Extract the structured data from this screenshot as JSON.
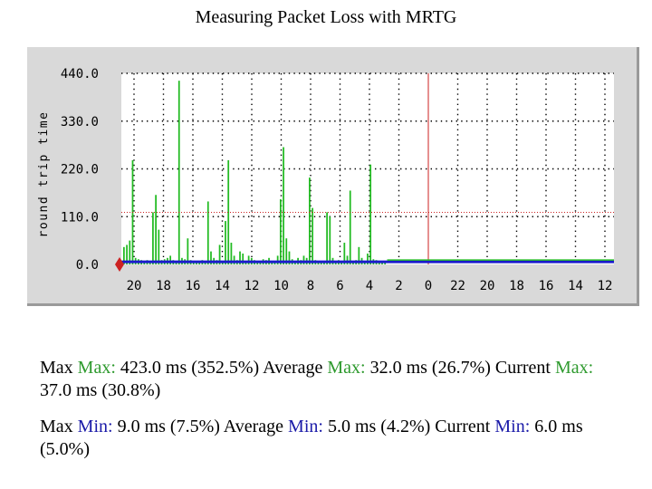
{
  "title": "Measuring Packet Loss with MRTG",
  "colors": {
    "panel_bg": "#d9d9d9",
    "plot_bg": "#ffffff",
    "max_series": "#22bb22",
    "min_series": "#1a1acc",
    "threshold_line": "#cc2222",
    "now_line": "#cc2222",
    "grid": "#000000"
  },
  "chart_data": {
    "type": "bar",
    "ylabel": "round trip time",
    "ylim": [
      0,
      440
    ],
    "y_ticks": [
      "0.0",
      "110.0",
      "220.0",
      "330.0",
      "440.0"
    ],
    "x_ticks": [
      "20",
      "18",
      "16",
      "14",
      "12",
      "10",
      "8",
      "6",
      "4",
      "2",
      "0",
      "22",
      "20",
      "18",
      "16",
      "14",
      "12"
    ],
    "x_axis": "hours before now, newest at the 0 mark; right of 0 shows no recent data",
    "grid": true,
    "threshold_value": 120,
    "series": [
      {
        "name": "Max",
        "values": [
          40,
          45,
          55,
          240,
          15,
          12,
          10,
          8,
          10,
          6,
          120,
          160,
          80,
          10,
          12,
          15,
          20,
          10,
          8,
          423,
          15,
          12,
          60,
          10,
          8,
          6,
          5,
          10,
          8,
          145,
          30,
          15,
          10,
          45,
          8,
          100,
          240,
          50,
          20,
          10,
          30,
          25,
          6,
          20,
          15,
          10,
          5,
          8,
          12,
          10,
          15,
          8,
          6,
          20,
          150,
          270,
          60,
          30,
          12,
          8,
          15,
          10,
          20,
          15,
          200,
          130,
          10,
          8,
          6,
          5,
          120,
          110,
          15,
          8,
          10,
          6,
          50,
          20,
          170,
          8,
          10,
          40,
          15,
          8,
          25,
          230,
          12,
          10,
          6,
          8,
          5
        ],
        "note": "bars from 20 h to ~3.5 h; later slots empty"
      },
      {
        "name": "Min",
        "values_constant": 6,
        "note": "flat baseline across entire width"
      }
    ]
  },
  "stats": {
    "line1_a": "Max ",
    "line1_key1": "Max:",
    "line1_b": " 423.0 ms (352.5%) Average ",
    "line1_key2": "Max:",
    "line1_c": " 32.0 ms (26.7%) Current ",
    "line1_key3": "Max:",
    "line1_d": " 37.0 ms (30.8%)",
    "line2_a": "Max ",
    "line2_key1": "Min:",
    "line2_b": " 9.0 ms (7.5%) Average ",
    "line2_key2": "Min:",
    "line2_c": " 5.0 ms (4.2%) Current ",
    "line2_key3": "Min:",
    "line2_d": " 6.0 ms (5.0%)"
  }
}
